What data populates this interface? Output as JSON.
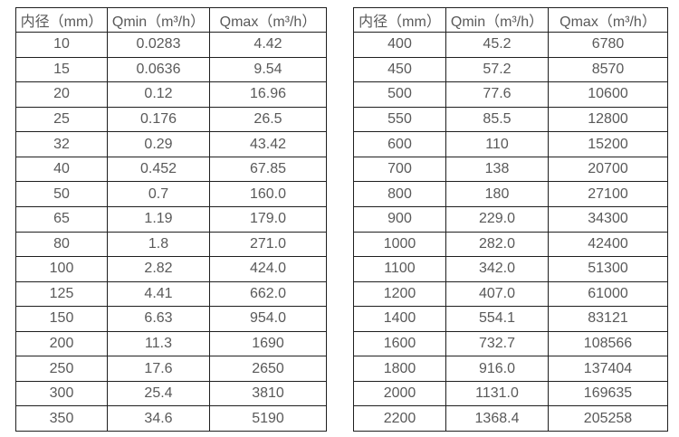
{
  "page": {
    "background_color": "#ffffff",
    "border_color": "#1f1f1f",
    "text_color": "#595959"
  },
  "tables": [
    {
      "name": "flow-spec-table-small-diameters",
      "headers": [
        "内径（mm）",
        "Qmin（m³/h）",
        "Qmax（m³/h）"
      ],
      "rows": [
        [
          "10",
          "0.0283",
          "4.42"
        ],
        [
          "15",
          "0.0636",
          "9.54"
        ],
        [
          "20",
          "0.12",
          "16.96"
        ],
        [
          "25",
          "0.176",
          "26.5"
        ],
        [
          "32",
          "0.29",
          "43.42"
        ],
        [
          "40",
          "0.452",
          "67.85"
        ],
        [
          "50",
          "0.7",
          "160.0"
        ],
        [
          "65",
          "1.19",
          "179.0"
        ],
        [
          "80",
          "1.8",
          "271.0"
        ],
        [
          "100",
          "2.82",
          "424.0"
        ],
        [
          "125",
          "4.41",
          "662.0"
        ],
        [
          "150",
          "6.63",
          "954.0"
        ],
        [
          "200",
          "11.3",
          "1690"
        ],
        [
          "250",
          "17.6",
          "2650"
        ],
        [
          "300",
          "25.4",
          "3810"
        ],
        [
          "350",
          "34.6",
          "5190"
        ]
      ]
    },
    {
      "name": "flow-spec-table-large-diameters",
      "headers": [
        "内径（mm）",
        "Qmin（m³/h）",
        "Qmax（m³/h）"
      ],
      "rows": [
        [
          "400",
          "45.2",
          "6780"
        ],
        [
          "450",
          "57.2",
          "8570"
        ],
        [
          "500",
          "77.6",
          "10600"
        ],
        [
          "550",
          "85.5",
          "12800"
        ],
        [
          "600",
          "110",
          "15200"
        ],
        [
          "700",
          "138",
          "20700"
        ],
        [
          "800",
          "180",
          "27100"
        ],
        [
          "900",
          "229.0",
          "34300"
        ],
        [
          "1000",
          "282.0",
          "42400"
        ],
        [
          "1100",
          "342.0",
          "51300"
        ],
        [
          "1200",
          "407.0",
          "61000"
        ],
        [
          "1400",
          "554.1",
          "83121"
        ],
        [
          "1600",
          "732.7",
          "108566"
        ],
        [
          "1800",
          "916.0",
          "137404"
        ],
        [
          "2000",
          "1131.0",
          "169635"
        ],
        [
          "2200",
          "1368.4",
          "205258"
        ]
      ]
    }
  ]
}
